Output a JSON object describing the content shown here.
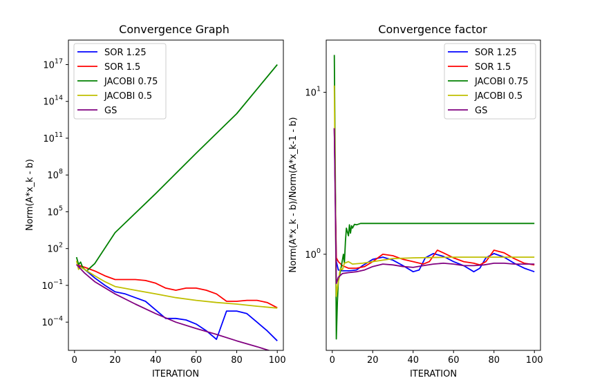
{
  "chart_data": [
    {
      "type": "line",
      "title": "Convergence Graph",
      "xlabel": "ITERATION",
      "ylabel": "Norm(A*x_k - b)",
      "yscale": "log",
      "xlim": [
        -3,
        103
      ],
      "ylim": [
        5e-07,
        1e+19
      ],
      "x_ticks": [
        0,
        20,
        40,
        60,
        80,
        100
      ],
      "x_tick_labels": [
        "0",
        "20",
        "40",
        "60",
        "80",
        "100"
      ],
      "y_ticks": [
        0.0001,
        0.1,
        100,
        100000.0,
        100000000.0,
        100000000000.0,
        100000000000000.0,
        1e+17
      ],
      "y_tick_labels": [
        {
          "base": "10",
          "exp": "−4"
        },
        {
          "base": "10",
          "exp": "−1"
        },
        {
          "base": "10",
          "exp": "2"
        },
        {
          "base": "10",
          "exp": "5"
        },
        {
          "base": "10",
          "exp": "8"
        },
        {
          "base": "10",
          "exp": "11"
        },
        {
          "base": "10",
          "exp": "14"
        },
        {
          "base": "10",
          "exp": "17"
        }
      ],
      "legend_position": "top-left",
      "series": [
        {
          "name": "SOR 1.25",
          "color": "#0000ff",
          "x": [
            1,
            5,
            10,
            15,
            20,
            25,
            30,
            35,
            40,
            45,
            50,
            55,
            60,
            65,
            70,
            75,
            80,
            85,
            90,
            95,
            100
          ],
          "y": [
            5,
            2,
            0.4,
            0.1,
            0.03,
            0.02,
            0.01,
            0.005,
            0.001,
            0.0002,
            0.0002,
            0.00015,
            7e-05,
            2e-05,
            4e-06,
            0.0008,
            0.0008,
            0.0005,
            0.0001,
            2e-05,
            3e-06
          ]
        },
        {
          "name": "SOR 1.5",
          "color": "#ff0000",
          "x": [
            1,
            5,
            10,
            15,
            20,
            25,
            30,
            35,
            40,
            45,
            50,
            55,
            60,
            65,
            70,
            75,
            80,
            85,
            90,
            95,
            100
          ],
          "y": [
            5,
            3,
            1.5,
            0.6,
            0.3,
            0.3,
            0.3,
            0.25,
            0.15,
            0.06,
            0.04,
            0.06,
            0.06,
            0.04,
            0.02,
            0.005,
            0.005,
            0.006,
            0.006,
            0.004,
            0.0015
          ]
        },
        {
          "name": "JACOBI 0.75",
          "color": "#008000",
          "x": [
            1,
            2,
            3,
            4,
            5,
            6,
            8,
            10,
            20,
            40,
            60,
            80,
            100
          ],
          "y": [
            20,
            5,
            8,
            3,
            2,
            1.5,
            3,
            6,
            2000,
            3000000.0,
            6000000000.0,
            10000000000000.0,
            1e+17
          ]
        },
        {
          "name": "JACOBI 0.5",
          "color": "#bfbf00",
          "x": [
            1,
            2,
            3,
            5,
            10,
            15,
            20,
            30,
            40,
            50,
            60,
            70,
            80,
            90,
            100
          ],
          "y": [
            10,
            2,
            3,
            2,
            0.6,
            0.2,
            0.08,
            0.04,
            0.02,
            0.01,
            0.006,
            0.004,
            0.003,
            0.002,
            0.0014
          ]
        },
        {
          "name": "GS",
          "color": "#800080",
          "x": [
            1,
            5,
            10,
            20,
            30,
            40,
            50,
            60,
            70,
            80,
            90,
            100
          ],
          "y": [
            5,
            1,
            0.2,
            0.02,
            0.003,
            0.0005,
            0.0001,
            3e-05,
            1e-05,
            3e-06,
            1e-06,
            3e-07
          ]
        }
      ]
    },
    {
      "type": "line",
      "title": "Convergence factor",
      "xlabel": "ITERATION",
      "ylabel": "Norm(A*x_k - b)/Norm(A*x_k-1 - b)",
      "yscale": "log",
      "xlim": [
        -3,
        103
      ],
      "ylim": [
        0.255,
        21
      ],
      "x_ticks": [
        0,
        20,
        40,
        60,
        80,
        100
      ],
      "x_tick_labels": [
        "0",
        "20",
        "40",
        "60",
        "80",
        "100"
      ],
      "y_ticks": [
        1,
        10
      ],
      "y_tick_labels": [
        {
          "base": "10",
          "exp": "0"
        },
        {
          "base": "10",
          "exp": "1"
        }
      ],
      "legend_position": "top-right",
      "series": [
        {
          "name": "SOR 1.25",
          "color": "#0000ff",
          "x": [
            1,
            2,
            3,
            5,
            8,
            12,
            15,
            20,
            25,
            30,
            35,
            40,
            43,
            46,
            50,
            55,
            60,
            65,
            70,
            73,
            76,
            80,
            85,
            90,
            95,
            100
          ],
          "y": [
            6,
            0.9,
            0.8,
            0.79,
            0.79,
            0.8,
            0.85,
            0.93,
            0.96,
            0.92,
            0.85,
            0.78,
            0.8,
            0.95,
            1.01,
            0.97,
            0.9,
            0.85,
            0.78,
            0.82,
            0.95,
            1.01,
            0.96,
            0.88,
            0.82,
            0.78
          ]
        },
        {
          "name": "SOR 1.5",
          "color": "#ff0000",
          "x": [
            1,
            2,
            3,
            5,
            8,
            12,
            16,
            20,
            25,
            30,
            35,
            40,
            45,
            48,
            52,
            55,
            60,
            65,
            70,
            73,
            76,
            80,
            85,
            90,
            95,
            100
          ],
          "y": [
            6,
            0.95,
            0.9,
            0.85,
            0.82,
            0.82,
            0.84,
            0.9,
            1.0,
            0.98,
            0.93,
            0.9,
            0.87,
            0.9,
            1.06,
            1.02,
            0.95,
            0.9,
            0.88,
            0.86,
            0.9,
            1.06,
            1.02,
            0.94,
            0.88,
            0.86
          ]
        },
        {
          "name": "JACOBI 0.75",
          "color": "#008000",
          "x": [
            1,
            1.5,
            2,
            2.5,
            3,
            4,
            5,
            5.5,
            6,
            6.5,
            7,
            8,
            8.5,
            9,
            9.5,
            10,
            11,
            12,
            14,
            16,
            20,
            30,
            50,
            70,
            100
          ],
          "y": [
            17,
            3,
            0.3,
            0.5,
            0.68,
            0.78,
            0.92,
            1.0,
            0.88,
            1.2,
            1.45,
            1.3,
            1.52,
            1.35,
            1.5,
            1.45,
            1.53,
            1.52,
            1.55,
            1.55,
            1.55,
            1.55,
            1.55,
            1.55,
            1.55
          ]
        },
        {
          "name": "JACOBI 0.5",
          "color": "#bfbf00",
          "x": [
            1,
            2,
            3,
            4,
            5,
            6,
            8,
            10,
            15,
            20,
            30,
            40,
            60,
            80,
            100
          ],
          "y": [
            11,
            0.55,
            0.68,
            0.82,
            0.8,
            0.88,
            0.9,
            0.87,
            0.88,
            0.9,
            0.94,
            0.95,
            0.96,
            0.96,
            0.96
          ]
        },
        {
          "name": "GS",
          "color": "#800080",
          "x": [
            1,
            2,
            3,
            5,
            8,
            12,
            16,
            20,
            25,
            30,
            35,
            40,
            45,
            50,
            55,
            60,
            65,
            70,
            75,
            80,
            85,
            90,
            95,
            100
          ],
          "y": [
            6,
            0.66,
            0.72,
            0.76,
            0.77,
            0.78,
            0.8,
            0.84,
            0.87,
            0.86,
            0.84,
            0.83,
            0.85,
            0.87,
            0.88,
            0.87,
            0.85,
            0.85,
            0.86,
            0.88,
            0.88,
            0.87,
            0.87,
            0.87
          ]
        }
      ]
    }
  ]
}
